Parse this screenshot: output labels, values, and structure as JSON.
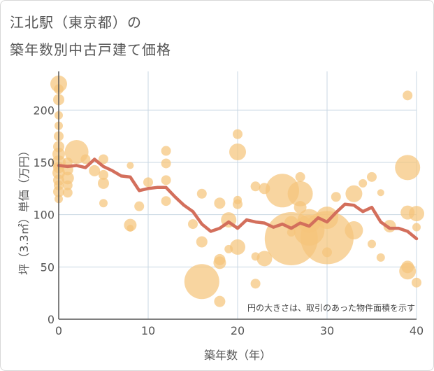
{
  "title_line1": "江北駅（東京都）の",
  "title_line2": "築年数別中古戸建て価格",
  "chart_data": {
    "type": "scatter",
    "xlabel": "築年数（年）",
    "ylabel": "坪（3.3㎡）単価（万円）",
    "xlim": [
      0,
      40
    ],
    "ylim": [
      0,
      237
    ],
    "xticks": [
      0,
      10,
      20,
      30,
      40
    ],
    "yticks": [
      0,
      50,
      100,
      150,
      200
    ],
    "grid": true,
    "annotation": "円の大きさは、取引のあった物件面積を示す",
    "colors": {
      "bubble": "#f5c57c",
      "line": "#d36f5c",
      "grid": "#c9d7e3",
      "axis": "#555555"
    },
    "series": [
      {
        "kind": "bubbles",
        "points": [
          {
            "x": 0,
            "y": 225,
            "s": 12
          },
          {
            "x": 0,
            "y": 220,
            "s": 7
          },
          {
            "x": 0,
            "y": 210,
            "s": 8
          },
          {
            "x": 0,
            "y": 195,
            "s": 6
          },
          {
            "x": 0,
            "y": 185,
            "s": 6
          },
          {
            "x": 0,
            "y": 175,
            "s": 7
          },
          {
            "x": 0,
            "y": 165,
            "s": 8
          },
          {
            "x": 0,
            "y": 158,
            "s": 9
          },
          {
            "x": 0,
            "y": 150,
            "s": 10
          },
          {
            "x": 0,
            "y": 145,
            "s": 8
          },
          {
            "x": 0,
            "y": 140,
            "s": 9
          },
          {
            "x": 0,
            "y": 133,
            "s": 8
          },
          {
            "x": 0,
            "y": 128,
            "s": 7
          },
          {
            "x": 0,
            "y": 122,
            "s": 8
          },
          {
            "x": 0,
            "y": 115,
            "s": 6
          },
          {
            "x": 1,
            "y": 150,
            "s": 7
          },
          {
            "x": 1,
            "y": 143,
            "s": 8
          },
          {
            "x": 1,
            "y": 135,
            "s": 9
          },
          {
            "x": 1,
            "y": 128,
            "s": 7
          },
          {
            "x": 1,
            "y": 121,
            "s": 7
          },
          {
            "x": 2,
            "y": 160,
            "s": 17
          },
          {
            "x": 3,
            "y": 153,
            "s": 7
          },
          {
            "x": 4,
            "y": 142,
            "s": 8
          },
          {
            "x": 5,
            "y": 153,
            "s": 7
          },
          {
            "x": 5,
            "y": 138,
            "s": 7
          },
          {
            "x": 5,
            "y": 130,
            "s": 8
          },
          {
            "x": 5,
            "y": 111,
            "s": 6
          },
          {
            "x": 8,
            "y": 147,
            "s": 5
          },
          {
            "x": 8,
            "y": 90,
            "s": 9
          },
          {
            "x": 8,
            "y": 87,
            "s": 5
          },
          {
            "x": 9,
            "y": 108,
            "s": 7
          },
          {
            "x": 10,
            "y": 131,
            "s": 7
          },
          {
            "x": 12,
            "y": 161,
            "s": 7
          },
          {
            "x": 12,
            "y": 149,
            "s": 7
          },
          {
            "x": 12,
            "y": 133,
            "s": 7
          },
          {
            "x": 12,
            "y": 113,
            "s": 7
          },
          {
            "x": 15,
            "y": 91,
            "s": 7
          },
          {
            "x": 16,
            "y": 120,
            "s": 7
          },
          {
            "x": 16,
            "y": 74,
            "s": 8
          },
          {
            "x": 16,
            "y": 36,
            "s": 25
          },
          {
            "x": 18,
            "y": 111,
            "s": 8
          },
          {
            "x": 18,
            "y": 57,
            "s": 8
          },
          {
            "x": 18,
            "y": 54,
            "s": 9
          },
          {
            "x": 18,
            "y": 17,
            "s": 8
          },
          {
            "x": 19,
            "y": 95,
            "s": 11
          },
          {
            "x": 19,
            "y": 67,
            "s": 6
          },
          {
            "x": 20,
            "y": 177,
            "s": 7
          },
          {
            "x": 20,
            "y": 160,
            "s": 12
          },
          {
            "x": 20,
            "y": 114,
            "s": 6
          },
          {
            "x": 20,
            "y": 110,
            "s": 7
          },
          {
            "x": 20,
            "y": 69,
            "s": 11
          },
          {
            "x": 22,
            "y": 127,
            "s": 7
          },
          {
            "x": 22,
            "y": 60,
            "s": 6
          },
          {
            "x": 22,
            "y": 34,
            "s": 7
          },
          {
            "x": 23,
            "y": 125,
            "s": 8
          },
          {
            "x": 23,
            "y": 58,
            "s": 11
          },
          {
            "x": 25,
            "y": 123,
            "s": 24
          },
          {
            "x": 26,
            "y": 92,
            "s": 10
          },
          {
            "x": 26,
            "y": 83,
            "s": 6
          },
          {
            "x": 26,
            "y": 77,
            "s": 38
          },
          {
            "x": 27,
            "y": 136,
            "s": 7
          },
          {
            "x": 27,
            "y": 120,
            "s": 18
          },
          {
            "x": 27,
            "y": 107,
            "s": 9
          },
          {
            "x": 28,
            "y": 94,
            "s": 17
          },
          {
            "x": 28,
            "y": 85,
            "s": 22
          },
          {
            "x": 30,
            "y": 97,
            "s": 16
          },
          {
            "x": 30,
            "y": 78,
            "s": 38
          },
          {
            "x": 30,
            "y": 64,
            "s": 7
          },
          {
            "x": 31,
            "y": 117,
            "s": 7
          },
          {
            "x": 33,
            "y": 120,
            "s": 12
          },
          {
            "x": 33,
            "y": 85,
            "s": 13
          },
          {
            "x": 34,
            "y": 130,
            "s": 6
          },
          {
            "x": 35,
            "y": 136,
            "s": 7
          },
          {
            "x": 35,
            "y": 72,
            "s": 6
          },
          {
            "x": 36,
            "y": 121,
            "s": 5
          },
          {
            "x": 36,
            "y": 59,
            "s": 6
          },
          {
            "x": 37,
            "y": 89,
            "s": 9
          },
          {
            "x": 39,
            "y": 214,
            "s": 7
          },
          {
            "x": 39,
            "y": 145,
            "s": 18
          },
          {
            "x": 39,
            "y": 102,
            "s": 10
          },
          {
            "x": 39,
            "y": 50,
            "s": 9
          },
          {
            "x": 39,
            "y": 46,
            "s": 12
          },
          {
            "x": 40,
            "y": 101,
            "s": 11
          },
          {
            "x": 40,
            "y": 88,
            "s": 6
          },
          {
            "x": 40,
            "y": 35,
            "s": 7
          }
        ]
      },
      {
        "kind": "line",
        "points": [
          {
            "x": 0,
            "y": 147
          },
          {
            "x": 1,
            "y": 146
          },
          {
            "x": 2,
            "y": 147
          },
          {
            "x": 3,
            "y": 145
          },
          {
            "x": 4,
            "y": 153
          },
          {
            "x": 5,
            "y": 146
          },
          {
            "x": 6,
            "y": 142
          },
          {
            "x": 7,
            "y": 137
          },
          {
            "x": 8,
            "y": 136
          },
          {
            "x": 9,
            "y": 123
          },
          {
            "x": 10,
            "y": 125
          },
          {
            "x": 11,
            "y": 126
          },
          {
            "x": 12,
            "y": 126
          },
          {
            "x": 13,
            "y": 117
          },
          {
            "x": 14,
            "y": 109
          },
          {
            "x": 15,
            "y": 103
          },
          {
            "x": 16,
            "y": 91
          },
          {
            "x": 17,
            "y": 84
          },
          {
            "x": 18,
            "y": 87
          },
          {
            "x": 19,
            "y": 93
          },
          {
            "x": 20,
            "y": 87
          },
          {
            "x": 21,
            "y": 95
          },
          {
            "x": 22,
            "y": 93
          },
          {
            "x": 23,
            "y": 92
          },
          {
            "x": 24,
            "y": 88
          },
          {
            "x": 25,
            "y": 91
          },
          {
            "x": 26,
            "y": 87
          },
          {
            "x": 27,
            "y": 92
          },
          {
            "x": 28,
            "y": 89
          },
          {
            "x": 29,
            "y": 97
          },
          {
            "x": 30,
            "y": 93
          },
          {
            "x": 31,
            "y": 102
          },
          {
            "x": 32,
            "y": 110
          },
          {
            "x": 33,
            "y": 109
          },
          {
            "x": 34,
            "y": 103
          },
          {
            "x": 35,
            "y": 107
          },
          {
            "x": 36,
            "y": 93
          },
          {
            "x": 37,
            "y": 87
          },
          {
            "x": 38,
            "y": 87
          },
          {
            "x": 39,
            "y": 84
          },
          {
            "x": 40,
            "y": 77
          }
        ]
      }
    ]
  }
}
